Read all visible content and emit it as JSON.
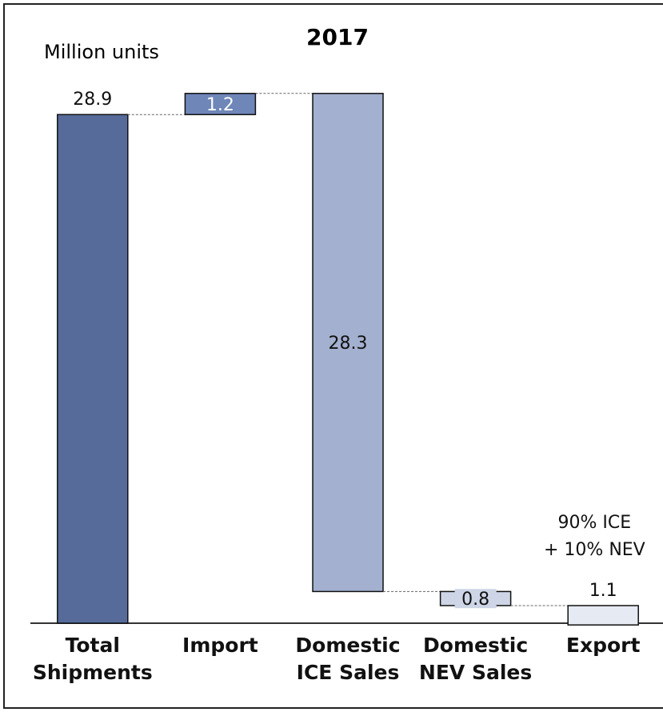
{
  "chart_data": {
    "type": "waterfall",
    "title": "2017",
    "y_axis_label": "Million units",
    "categories": [
      "Total\nShipments",
      "Import",
      "Domestic\nICE Sales",
      "Domestic\nNEV Sales",
      "Export"
    ],
    "steps": [
      "total",
      "increase",
      "decrease",
      "decrease",
      "decrease"
    ],
    "values": [
      28.9,
      1.2,
      28.3,
      0.8,
      1.1
    ],
    "colors": [
      "#566b9a",
      "#6f86b8",
      "#a3b0cf",
      "#cdd5e6",
      "#e6eaf2"
    ],
    "ylim": [
      0,
      35
    ],
    "annotations": [
      "90% ICE\n+ 10% NEV"
    ]
  }
}
